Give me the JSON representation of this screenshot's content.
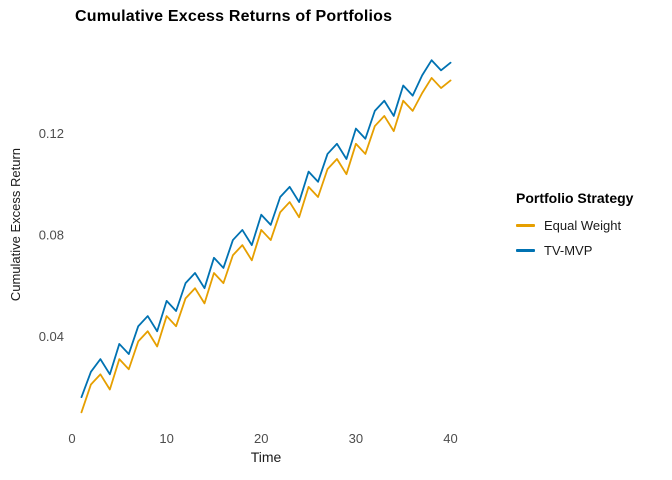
{
  "chart_data": {
    "type": "line",
    "title": "Cumulative Excess Returns of Portfolios",
    "xlabel": "Time",
    "ylabel": "Cumulative Excess Return",
    "legend_title": "Portfolio Strategy",
    "legend_position": "right",
    "grid": false,
    "xlim": [
      0,
      41
    ],
    "ylim": [
      0.005,
      0.155
    ],
    "x_ticks": [
      {
        "value": 0,
        "label": "0"
      },
      {
        "value": 10,
        "label": "10"
      },
      {
        "value": 20,
        "label": "20"
      },
      {
        "value": 30,
        "label": "30"
      },
      {
        "value": 40,
        "label": "40"
      }
    ],
    "y_ticks": [
      {
        "value": 0.04,
        "label": "0.04"
      },
      {
        "value": 0.08,
        "label": "0.08"
      },
      {
        "value": 0.12,
        "label": "0.12"
      }
    ],
    "x": [
      1,
      2,
      3,
      4,
      5,
      6,
      7,
      8,
      9,
      10,
      11,
      12,
      13,
      14,
      15,
      16,
      17,
      18,
      19,
      20,
      21,
      22,
      23,
      24,
      25,
      26,
      27,
      28,
      29,
      30,
      31,
      32,
      33,
      34,
      35,
      36,
      37,
      38,
      39,
      40
    ],
    "series": [
      {
        "name": "Equal Weight",
        "color": "#E69F00",
        "values": [
          0.01,
          0.021,
          0.025,
          0.019,
          0.031,
          0.027,
          0.038,
          0.042,
          0.036,
          0.048,
          0.044,
          0.055,
          0.059,
          0.053,
          0.065,
          0.061,
          0.072,
          0.076,
          0.07,
          0.082,
          0.078,
          0.089,
          0.093,
          0.087,
          0.099,
          0.095,
          0.106,
          0.11,
          0.104,
          0.116,
          0.112,
          0.123,
          0.127,
          0.121,
          0.133,
          0.129,
          0.136,
          0.142,
          0.138,
          0.141
        ]
      },
      {
        "name": "TV-MVP",
        "color": "#0072B2",
        "values": [
          0.016,
          0.026,
          0.031,
          0.025,
          0.037,
          0.033,
          0.044,
          0.048,
          0.042,
          0.054,
          0.05,
          0.061,
          0.065,
          0.059,
          0.071,
          0.067,
          0.078,
          0.082,
          0.076,
          0.088,
          0.084,
          0.095,
          0.099,
          0.093,
          0.105,
          0.101,
          0.112,
          0.116,
          0.11,
          0.122,
          0.118,
          0.129,
          0.133,
          0.127,
          0.139,
          0.135,
          0.143,
          0.149,
          0.145,
          0.148
        ]
      }
    ]
  }
}
